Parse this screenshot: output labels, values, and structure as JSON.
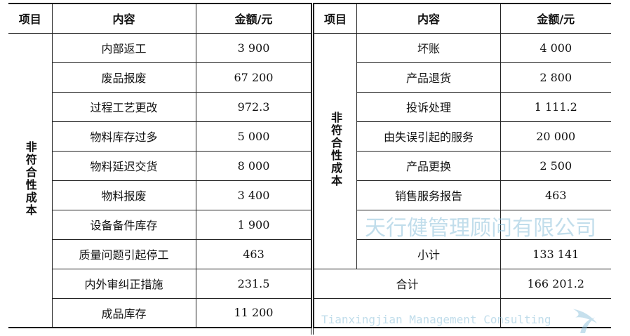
{
  "headers": {
    "item": "项目",
    "content": "内容",
    "amount": "金额/元"
  },
  "left_table": {
    "category": "非符合性成本",
    "rows": [
      {
        "content": "内部返工",
        "amount": "3 900"
      },
      {
        "content": "废品报废",
        "amount": "67 200"
      },
      {
        "content": "过程工艺更改",
        "amount": "972.3"
      },
      {
        "content": "物料库存过多",
        "amount": "5 000"
      },
      {
        "content": "物料延迟交货",
        "amount": "8 000"
      },
      {
        "content": "物料报废",
        "amount": "3 400"
      },
      {
        "content": "设备备件库存",
        "amount": "1 900"
      },
      {
        "content": "质量问题引起停工",
        "amount": "463"
      },
      {
        "content": "内外审纠正措施",
        "amount": "231.5"
      },
      {
        "content": "成品库存",
        "amount": "11 200"
      }
    ]
  },
  "right_table": {
    "category": "非符合性成本",
    "rows": [
      {
        "content": "坏账",
        "amount": "4 000"
      },
      {
        "content": "产品退货",
        "amount": "2 800"
      },
      {
        "content": "投诉处理",
        "amount": "1 111.2"
      },
      {
        "content": "由失误引起的服务",
        "amount": "20 000"
      },
      {
        "content": "产品更换",
        "amount": "2 500"
      },
      {
        "content": "销售服务报告",
        "amount": "463"
      },
      {
        "content": "",
        "amount": ""
      },
      {
        "content": "小计",
        "amount": "133 141"
      }
    ],
    "total_label": "合计",
    "total_amount": "166 201.2"
  },
  "watermark": {
    "cn": "天行健管理顾问有限公司",
    "en": "Tianxingjian Management Consulting",
    "color": "#8fc3dc"
  }
}
